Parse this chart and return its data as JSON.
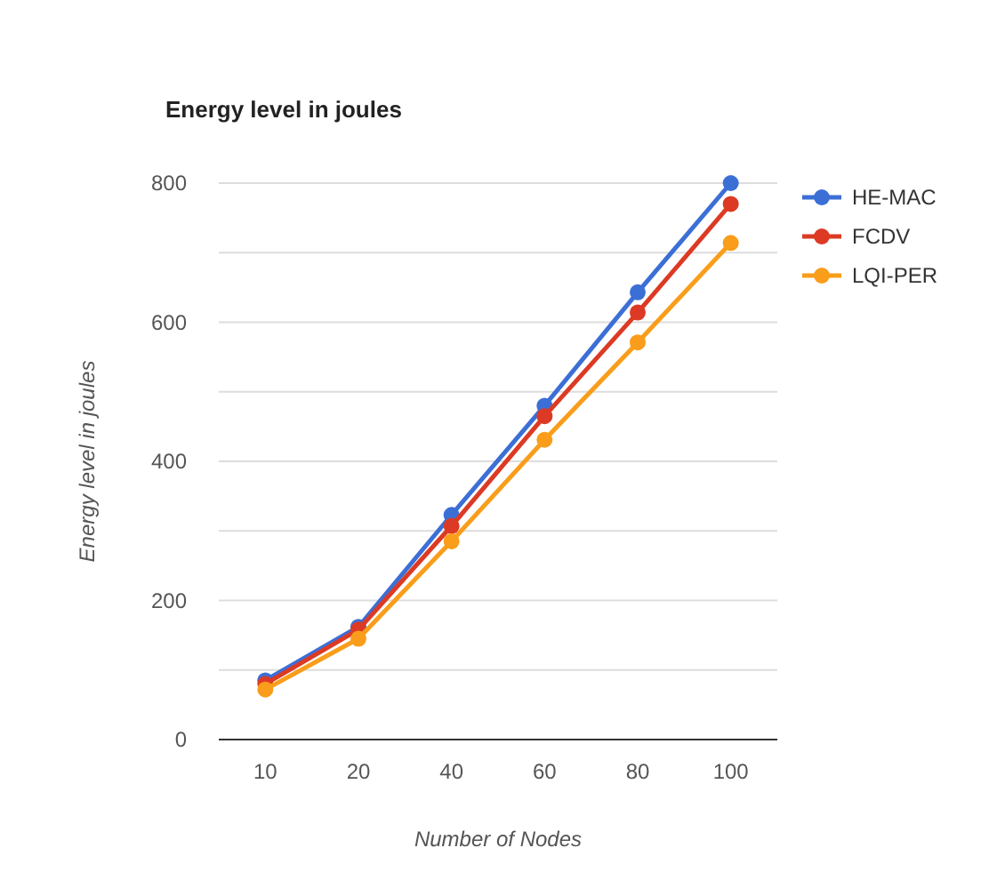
{
  "chart_data": {
    "type": "line",
    "title": "Energy level in joules",
    "xlabel": "Number of Nodes",
    "ylabel": "Energy level in joules",
    "categories": [
      "10",
      "20",
      "40",
      "60",
      "80",
      "100"
    ],
    "series": [
      {
        "name": "HE-MAC",
        "color": "#3c6fd6",
        "values": [
          85,
          162,
          323,
          480,
          643,
          800
        ]
      },
      {
        "name": "FCDV",
        "color": "#dc3a24",
        "values": [
          80,
          158,
          307,
          465,
          614,
          770
        ]
      },
      {
        "name": "LQI-PER",
        "color": "#f99d1b",
        "values": [
          72,
          145,
          285,
          431,
          571,
          714
        ]
      }
    ],
    "ylim": [
      0,
      800
    ],
    "yticks": [
      0,
      {
        "value": 100,
        "label": null
      },
      200,
      {
        "value": 300,
        "label": null
      },
      400,
      {
        "value": 500,
        "label": null
      },
      600,
      {
        "value": 700,
        "label": null
      },
      800
    ],
    "grid": "y",
    "legend": "right",
    "marker": "circle",
    "line_style": "solid"
  }
}
